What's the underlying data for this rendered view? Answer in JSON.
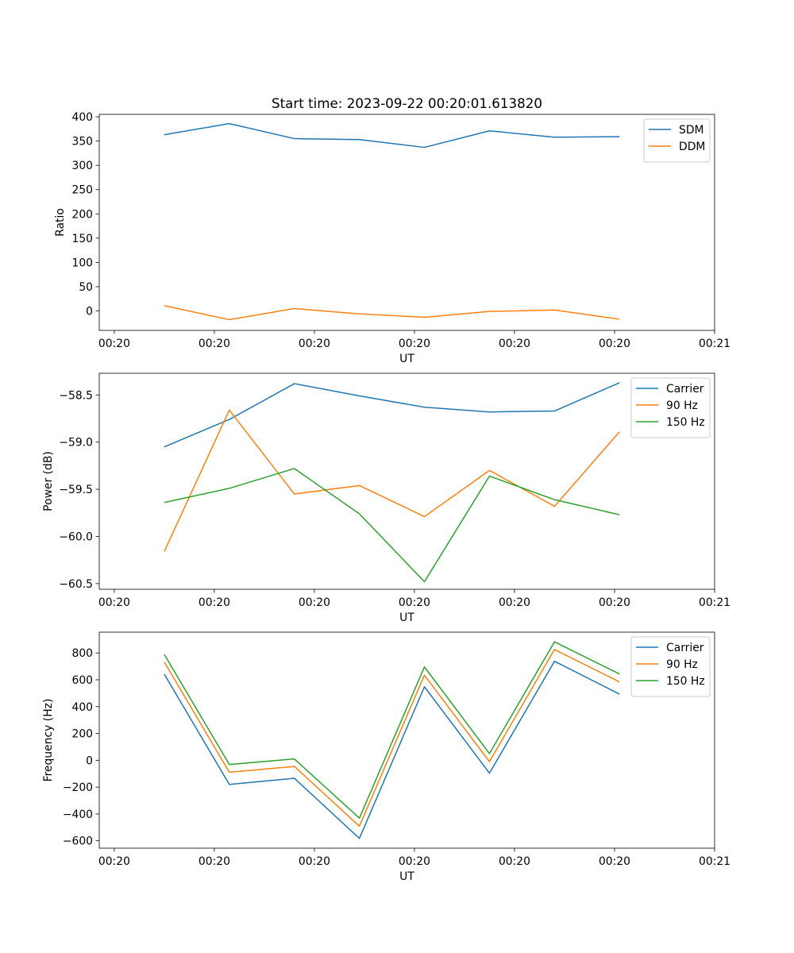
{
  "figure_title": "Start time: 2023-09-22 00:20:01.613820",
  "chart_data": [
    {
      "type": "line",
      "title": "Start time: 2023-09-22 00:20:01.613820",
      "xlabel": "UT",
      "ylabel": "Ratio",
      "x_tick_labels": [
        "00:20",
        "00:20",
        "00:20",
        "00:20",
        "00:20",
        "00:20",
        "00:20"
      ],
      "x_tick_labels_last": "00:21",
      "x_ticks": [
        0,
        1,
        2,
        3,
        4,
        5,
        6
      ],
      "xlim": [
        -0.15,
        6.0
      ],
      "x": [
        0.5,
        1.15,
        1.8,
        2.45,
        3.1,
        3.75,
        4.4,
        5.05
      ],
      "ylim": [
        -40,
        405
      ],
      "yticks": [
        0,
        50,
        100,
        150,
        200,
        250,
        300,
        350,
        400
      ],
      "ytick_labels": [
        "0",
        "50",
        "100",
        "150",
        "200",
        "250",
        "300",
        "350",
        "400"
      ],
      "legend": "top-right",
      "series": [
        {
          "name": "SDM",
          "color": "#1f77b4",
          "values": [
            363,
            386,
            355,
            353,
            337,
            371,
            358,
            359
          ]
        },
        {
          "name": "DDM",
          "color": "#ff7f0e",
          "values": [
            11,
            -18,
            5,
            -6,
            -13,
            -1,
            2,
            -17
          ]
        }
      ]
    },
    {
      "type": "line",
      "title": "",
      "xlabel": "UT",
      "ylabel": "Power (dB)",
      "x_tick_labels": [
        "00:20",
        "00:20",
        "00:20",
        "00:20",
        "00:20",
        "00:20",
        "00:20"
      ],
      "x_tick_labels_last": "00:21",
      "x_ticks": [
        0,
        1,
        2,
        3,
        4,
        5,
        6
      ],
      "xlim": [
        -0.15,
        6.0
      ],
      "x": [
        0.5,
        1.15,
        1.8,
        2.45,
        3.1,
        3.75,
        4.4,
        5.05
      ],
      "ylim": [
        -60.56,
        -58.27
      ],
      "yticks": [
        -60.5,
        -60.0,
        -59.5,
        -59.0,
        -58.5
      ],
      "ytick_labels": [
        "−60.5",
        "−60.0",
        "−59.5",
        "−59.0",
        "−58.5"
      ],
      "legend": "top-right",
      "series": [
        {
          "name": "Carrier",
          "color": "#1f77b4",
          "values": [
            -59.05,
            -58.76,
            -58.38,
            -58.51,
            -58.63,
            -58.68,
            -58.67,
            -58.37
          ]
        },
        {
          "name": "90 Hz",
          "color": "#ff7f0e",
          "values": [
            -60.16,
            -58.66,
            -59.55,
            -59.46,
            -59.79,
            -59.3,
            -59.68,
            -58.89
          ]
        },
        {
          "name": "150 Hz",
          "color": "#2ca02c",
          "values": [
            -59.64,
            -59.49,
            -59.28,
            -59.76,
            -60.48,
            -59.36,
            -59.61,
            -59.77
          ]
        }
      ]
    },
    {
      "type": "line",
      "title": "",
      "xlabel": "UT",
      "ylabel": "Frequency (Hz)",
      "x_tick_labels": [
        "00:20",
        "00:20",
        "00:20",
        "00:20",
        "00:20",
        "00:20",
        "00:20"
      ],
      "x_tick_labels_last": "00:21",
      "x_ticks": [
        0,
        1,
        2,
        3,
        4,
        5,
        6
      ],
      "xlim": [
        -0.15,
        6.0
      ],
      "x": [
        0.5,
        1.15,
        1.8,
        2.45,
        3.1,
        3.75,
        4.4,
        5.05
      ],
      "ylim": [
        -655,
        955
      ],
      "yticks": [
        -600,
        -400,
        -200,
        0,
        200,
        400,
        600,
        800
      ],
      "ytick_labels": [
        "−600",
        "−400",
        "−200",
        "0",
        "200",
        "400",
        "600",
        "800"
      ],
      "legend": "top-right",
      "series": [
        {
          "name": "Carrier",
          "color": "#1f77b4",
          "values": [
            642,
            -180,
            -134,
            -582,
            548,
            -96,
            738,
            493
          ]
        },
        {
          "name": "90 Hz",
          "color": "#ff7f0e",
          "values": [
            733,
            -89,
            -46,
            -491,
            634,
            -10,
            826,
            584
          ]
        },
        {
          "name": "150 Hz",
          "color": "#2ca02c",
          "values": [
            789,
            -31,
            10,
            -431,
            696,
            50,
            883,
            643
          ]
        }
      ]
    }
  ]
}
